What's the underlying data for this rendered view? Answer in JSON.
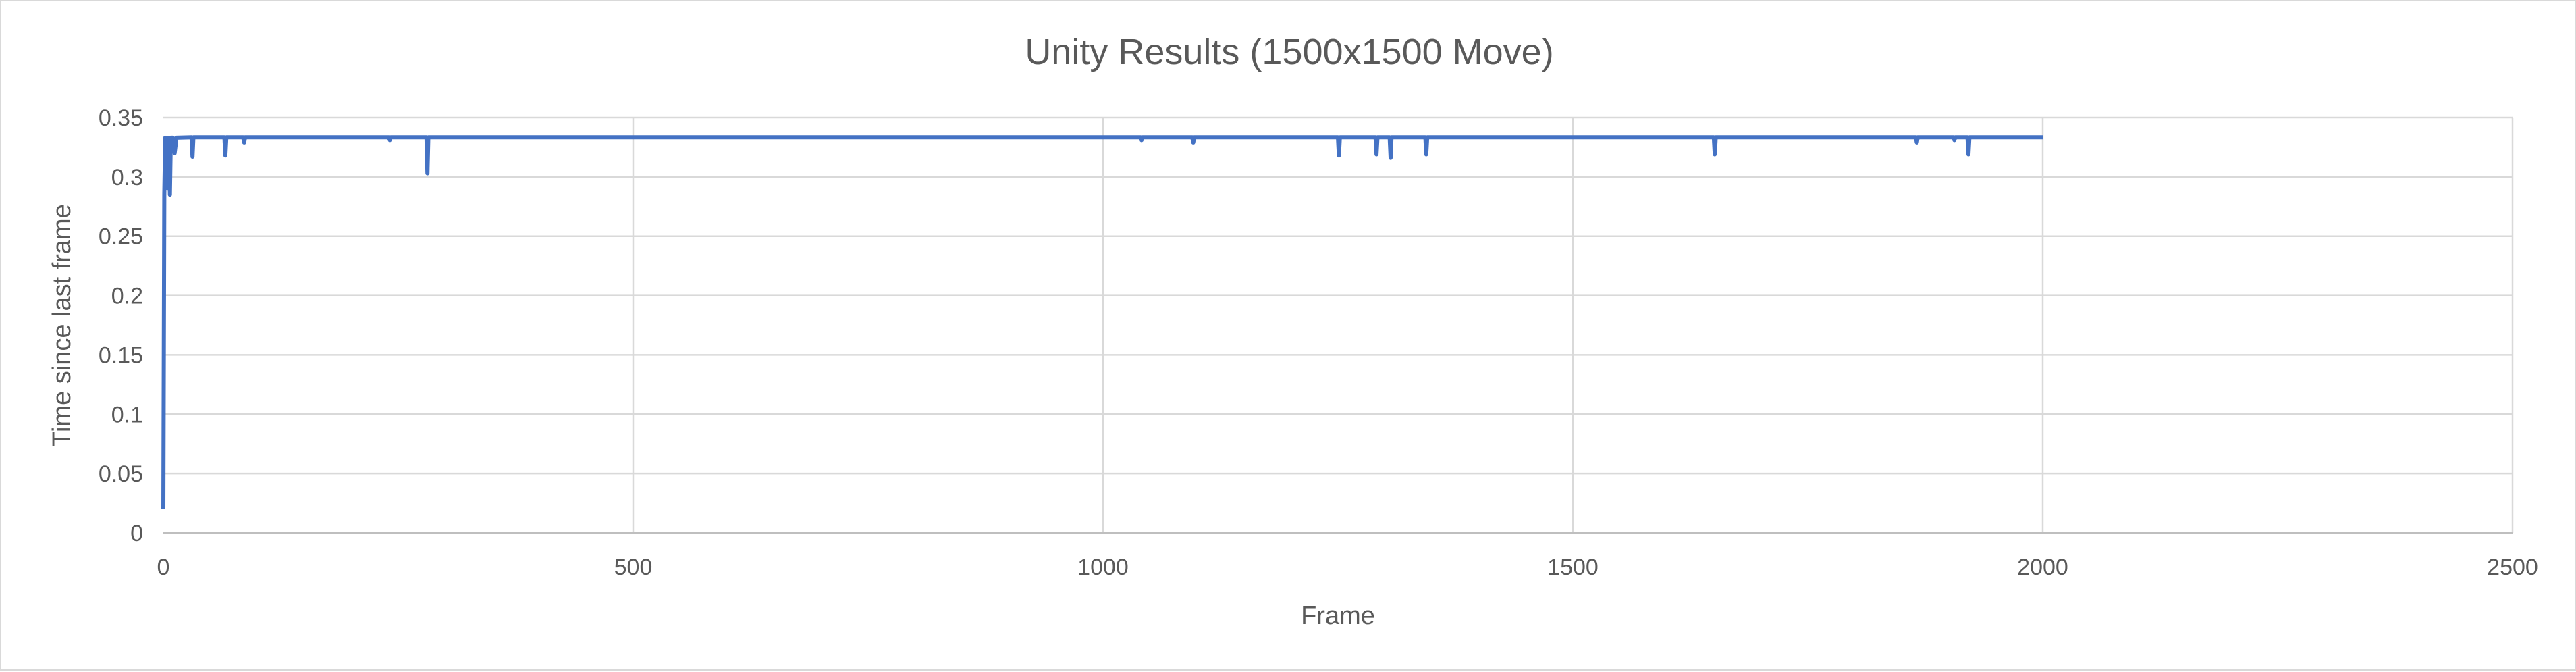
{
  "chart_data": {
    "type": "line",
    "title": "Unity Results (1500x1500 Move)",
    "xlabel": "Frame",
    "ylabel": "Time since last frame",
    "xlim": [
      0,
      2500
    ],
    "ylim": [
      0,
      0.35
    ],
    "xticks": [
      "0",
      "500",
      "1000",
      "1500",
      "2000",
      "2500"
    ],
    "yticks": [
      "0",
      "0.05",
      "0.1",
      "0.15",
      "0.2",
      "0.25",
      "0.3",
      "0.35"
    ],
    "grid": true,
    "legend": "none",
    "color": "#4472c4",
    "baseline": 0.3333,
    "series": [
      {
        "x": [
          0,
          1,
          2,
          3,
          4,
          5,
          6,
          7,
          8,
          10,
          12,
          14,
          30,
          31,
          32,
          65,
          66,
          67,
          85,
          86,
          87,
          240,
          241,
          242,
          280,
          281,
          282,
          1040,
          1041,
          1042,
          1095,
          1096,
          1097,
          1250,
          1251,
          1252,
          1290,
          1291,
          1292,
          1305,
          1306,
          1307,
          1343,
          1344,
          1345,
          1650,
          1651,
          1652,
          1865,
          1866,
          1867,
          1905,
          1906,
          1907,
          1920,
          1921,
          1922,
          2000
        ],
        "y": [
          0.02,
          0.285,
          0.333,
          0.31,
          0.333,
          0.29,
          0.333,
          0.285,
          0.333,
          0.333,
          0.32,
          0.333,
          0.3333,
          0.317,
          0.3333,
          0.3333,
          0.318,
          0.3333,
          0.3333,
          0.329,
          0.3333,
          0.3333,
          0.331,
          0.3333,
          0.3333,
          0.303,
          0.3333,
          0.3333,
          0.331,
          0.3333,
          0.3333,
          0.329,
          0.3333,
          0.3333,
          0.318,
          0.3333,
          0.3333,
          0.319,
          0.3333,
          0.3333,
          0.316,
          0.3333,
          0.3333,
          0.319,
          0.3333,
          0.3333,
          0.319,
          0.3333,
          0.3333,
          0.329,
          0.3333,
          0.3333,
          0.331,
          0.3333,
          0.3333,
          0.319,
          0.3333,
          0.3333
        ]
      }
    ]
  }
}
